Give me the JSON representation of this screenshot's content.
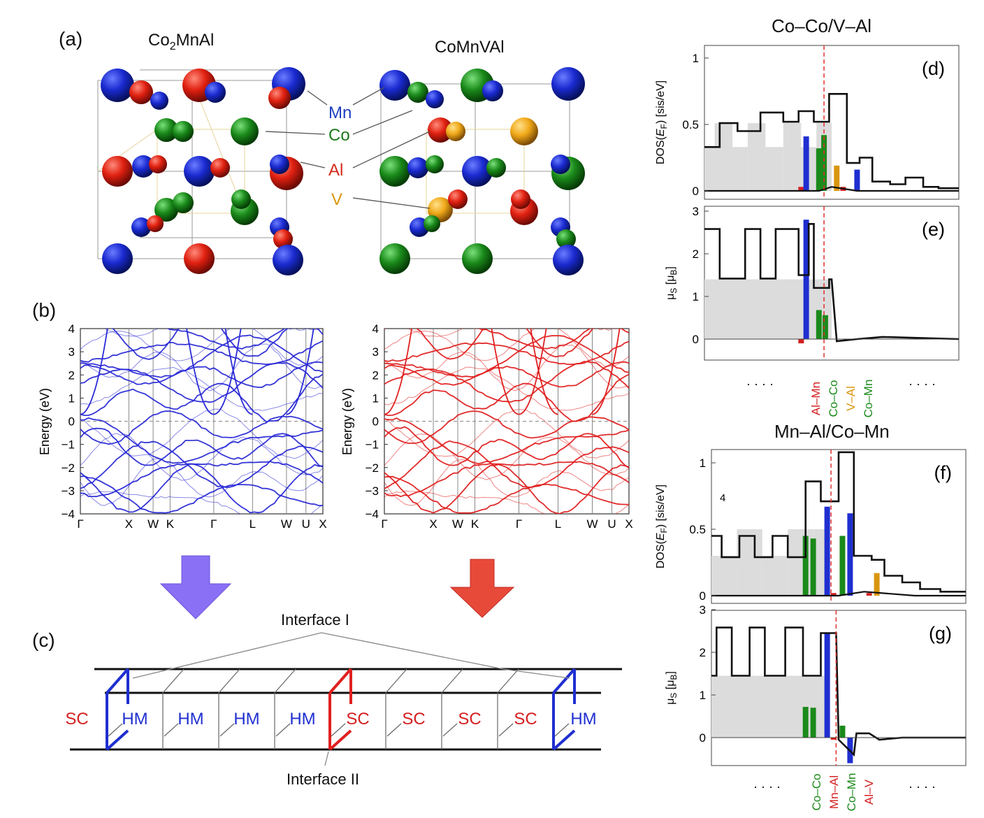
{
  "panel_a": {
    "letter": "(a)",
    "formula_left": {
      "base": "Co",
      "sub": "2",
      "rest": "MnAl"
    },
    "formula_right": "CoMnVAl",
    "legend": [
      {
        "label": "Mn",
        "color": "#1f3fbf"
      },
      {
        "label": "Co",
        "color": "#1a7a1a"
      },
      {
        "label": "Al",
        "color": "#d42a1a"
      },
      {
        "label": "V",
        "color": "#d9960f"
      }
    ]
  },
  "panel_b": {
    "letter": "(b)",
    "ylabel": "Energy (eV)",
    "yticks": [
      "4",
      "3",
      "2",
      "1",
      "0",
      "−1",
      "−2",
      "−3",
      "−4"
    ],
    "kpoints": [
      "Γ",
      "X",
      "W",
      "K",
      "Γ",
      "L",
      "W",
      "U",
      "X"
    ],
    "left_color": "#2a2ad6",
    "right_color": "#e02020"
  },
  "panel_c": {
    "letter": "(c)",
    "interface_top": "Interface I",
    "interface_bottom": "Interface II",
    "cells": [
      {
        "label": "SC",
        "color": "#d42020"
      },
      {
        "label": "HM",
        "color": "#1f2fd0"
      },
      {
        "label": "HM",
        "color": "#1f2fd0"
      },
      {
        "label": "HM",
        "color": "#1f2fd0"
      },
      {
        "label": "HM",
        "color": "#1f2fd0"
      },
      {
        "label": "SC",
        "color": "#d42020"
      },
      {
        "label": "SC",
        "color": "#d42020"
      },
      {
        "label": "SC",
        "color": "#d42020"
      },
      {
        "label": "SC",
        "color": "#d42020"
      },
      {
        "label": "HM",
        "color": "#1f2fd0"
      }
    ]
  },
  "panel_top_right": {
    "title": "Co–Co/V–Al",
    "letter_d": "(d)",
    "letter_e": "(e)",
    "dos_ylabel": "DOS(E_F) [sis/eV]",
    "dos_yticks": [
      "1",
      "0.5",
      "0"
    ],
    "mu_ylabel": "μ_S [μ_B]",
    "mu_yticks": [
      "3",
      "2",
      "1",
      "0"
    ],
    "dots": "· · · ·",
    "xlabels": [
      {
        "text": "Al–Mn",
        "color": "#d42020"
      },
      {
        "text": "Co–Co",
        "color": "#1a8a1a"
      },
      {
        "text": "V–Al",
        "color": "#d9960f"
      },
      {
        "text": "Co–Mn",
        "color": "#1a8a1a"
      }
    ]
  },
  "panel_bottom_right": {
    "title": "Mn–Al/Co–Mn",
    "letter_f": "(f)",
    "letter_g": "(g)",
    "stray_number": "4",
    "dos_ylabel": "DOS(E_F) [sis/eV]",
    "dos_yticks": [
      "1",
      "0.5",
      "0"
    ],
    "mu_ylabel": "μ_S [μ_B]",
    "mu_yticks": [
      "3",
      "2",
      "1",
      "0"
    ],
    "dots": "· · · ·",
    "xlabels": [
      {
        "text": "Co–Co",
        "color": "#1a8a1a"
      },
      {
        "text": "Mn–Al",
        "color": "#d42020"
      },
      {
        "text": "Co–Mn",
        "color": "#1a8a1a"
      },
      {
        "text": "Al–V",
        "color": "#d42020"
      }
    ]
  }
}
